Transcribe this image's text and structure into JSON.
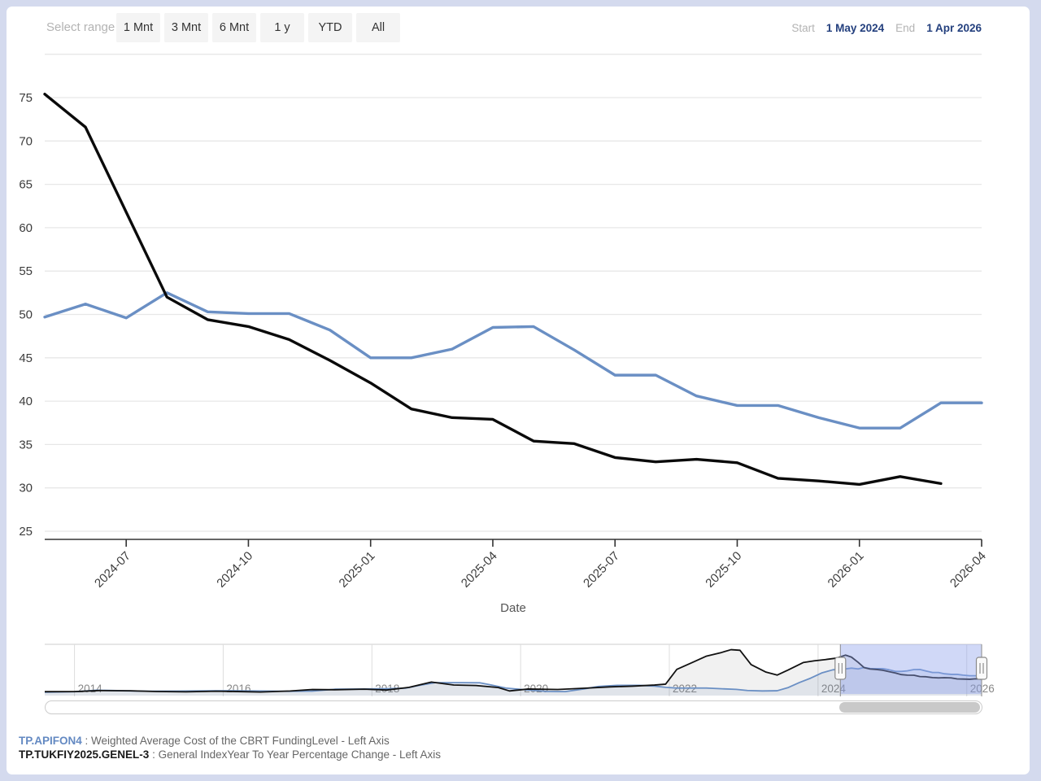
{
  "toolbar": {
    "select_range_label": "Select range",
    "buttons": [
      "1 Mnt",
      "3 Mnt",
      "6 Mnt",
      "1 y",
      "YTD",
      "All"
    ],
    "start_label": "Start",
    "start_value": "1 May 2024",
    "end_label": "End",
    "end_value": "1 Apr 2026"
  },
  "colors": {
    "page_background": "#d4daee",
    "card_background": "#ffffff",
    "series_blue": "#6a8fc4",
    "series_black": "#0a0a0a",
    "gridline": "#e7e7e7",
    "axis": "#333333",
    "tick_text": "#3c3c3c",
    "muted_text": "#b3b3b3",
    "date_value_text": "#24407e",
    "nav_selection": "#8fa2ec",
    "nav_year_text": "#888888"
  },
  "chart_data": [
    {
      "type": "line",
      "title": "",
      "xlabel": "Date",
      "ylabel": "",
      "ylim": [
        24,
        80.5
      ],
      "y_ticks": [
        25,
        30,
        35,
        40,
        45,
        50,
        55,
        60,
        65,
        70,
        75
      ],
      "y_gridlines": [
        25,
        30,
        35,
        40,
        45,
        50,
        55,
        60,
        65,
        70,
        75,
        80
      ],
      "x": [
        "2024-05",
        "2024-06",
        "2024-07",
        "2024-08",
        "2024-09",
        "2024-10",
        "2024-11",
        "2024-12",
        "2025-01",
        "2025-02",
        "2025-03",
        "2025-04",
        "2025-05",
        "2025-06",
        "2025-07",
        "2025-08",
        "2025-09",
        "2025-10",
        "2025-11",
        "2025-12",
        "2026-01",
        "2026-02",
        "2026-03",
        "2026-04"
      ],
      "x_ticks": [
        {
          "i": 2,
          "label": "2024-07"
        },
        {
          "i": 5,
          "label": "2024-10"
        },
        {
          "i": 8,
          "label": "2025-01"
        },
        {
          "i": 11,
          "label": "2025-04"
        },
        {
          "i": 14,
          "label": "2025-07"
        },
        {
          "i": 17,
          "label": "2025-10"
        },
        {
          "i": 20,
          "label": "2026-01"
        },
        {
          "i": 23,
          "label": "2026-04"
        }
      ],
      "series": [
        {
          "name": "TP.APIFON4",
          "color": "#6a8fc4",
          "values": [
            49.7,
            51.2,
            49.6,
            52.5,
            50.3,
            50.1,
            50.1,
            48.2,
            45.0,
            45.0,
            46.0,
            48.5,
            48.6,
            45.9,
            43.0,
            43.0,
            40.6,
            39.5,
            39.5,
            38.1,
            36.9,
            36.9,
            39.8,
            39.8
          ]
        },
        {
          "name": "TP.TUKFIY2025.GENEL-3",
          "color": "#0a0a0a",
          "values": [
            75.4,
            71.6,
            61.8,
            52.0,
            49.4,
            48.6,
            47.1,
            44.7,
            42.1,
            39.1,
            38.1,
            37.9,
            35.4,
            35.1,
            33.5,
            33.0,
            33.3,
            32.9,
            31.1,
            30.8,
            30.4,
            31.3,
            30.5
          ]
        }
      ]
    },
    {
      "type": "area",
      "role": "navigator",
      "x_range": [
        2013.6,
        2026.2
      ],
      "year_ticks": [
        2014,
        2016,
        2018,
        2020,
        2022,
        2024,
        2026
      ],
      "selection": {
        "start_year": 2024.3,
        "end_year": 2026.2,
        "start_label": "1 May 2024",
        "end_label": "1 Apr 2026"
      },
      "series": [
        {
          "name": "TP.APIFON4",
          "color": "#6a8fc4",
          "fill": "rgba(106,143,196,0.12)",
          "points": [
            [
              2013.6,
              6.3
            ],
            [
              2014.0,
              7.2
            ],
            [
              2014.3,
              10.0
            ],
            [
              2014.7,
              8.8
            ],
            [
              2015.0,
              8.1
            ],
            [
              2015.4,
              8.3
            ],
            [
              2015.8,
              8.8
            ],
            [
              2016.1,
              9.0
            ],
            [
              2016.5,
              8.5
            ],
            [
              2016.9,
              8.0
            ],
            [
              2017.2,
              8.3
            ],
            [
              2017.5,
              11.8
            ],
            [
              2017.9,
              12.2
            ],
            [
              2018.2,
              12.8
            ],
            [
              2018.45,
              13.8
            ],
            [
              2018.65,
              19.3
            ],
            [
              2018.85,
              24.0
            ],
            [
              2019.2,
              24.0
            ],
            [
              2019.45,
              23.9
            ],
            [
              2019.6,
              19.9
            ],
            [
              2019.8,
              14.0
            ],
            [
              2020.1,
              10.4
            ],
            [
              2020.35,
              7.8
            ],
            [
              2020.6,
              7.4
            ],
            [
              2020.85,
              12.4
            ],
            [
              2021.05,
              17.0
            ],
            [
              2021.3,
              19.0
            ],
            [
              2021.6,
              19.0
            ],
            [
              2021.8,
              17.7
            ],
            [
              2021.95,
              15.4
            ],
            [
              2022.1,
              14.0
            ],
            [
              2022.5,
              14.0
            ],
            [
              2022.9,
              11.5
            ],
            [
              2023.05,
              9.5
            ],
            [
              2023.25,
              8.6
            ],
            [
              2023.45,
              9.0
            ],
            [
              2023.6,
              15.0
            ],
            [
              2023.75,
              24.3
            ],
            [
              2023.9,
              32.4
            ],
            [
              2024.05,
              42.2
            ],
            [
              2024.2,
              48.0
            ],
            [
              2024.37,
              49.7
            ],
            [
              2024.45,
              51.2
            ],
            [
              2024.54,
              49.6
            ],
            [
              2024.62,
              52.5
            ],
            [
              2024.7,
              50.3
            ],
            [
              2024.79,
              50.1
            ],
            [
              2024.87,
              50.1
            ],
            [
              2024.95,
              48.2
            ],
            [
              2025.04,
              45.0
            ],
            [
              2025.12,
              45.0
            ],
            [
              2025.2,
              46.0
            ],
            [
              2025.29,
              48.5
            ],
            [
              2025.37,
              48.6
            ],
            [
              2025.45,
              45.9
            ],
            [
              2025.54,
              43.0
            ],
            [
              2025.62,
              43.0
            ],
            [
              2025.7,
              40.6
            ],
            [
              2025.79,
              39.5
            ],
            [
              2025.87,
              39.5
            ],
            [
              2025.95,
              38.1
            ],
            [
              2026.04,
              36.9
            ],
            [
              2026.12,
              36.9
            ],
            [
              2026.2,
              39.8
            ]
          ]
        },
        {
          "name": "TP.TUKFIY2025.GENEL-3",
          "color": "#111111",
          "fill": "rgba(120,120,120,0.10)",
          "points": [
            [
              2013.6,
              7.3
            ],
            [
              2014.0,
              7.4
            ],
            [
              2014.33,
              9.4
            ],
            [
              2014.75,
              8.9
            ],
            [
              2015.1,
              7.6
            ],
            [
              2015.5,
              7.0
            ],
            [
              2015.9,
              8.1
            ],
            [
              2016.2,
              7.5
            ],
            [
              2016.5,
              6.6
            ],
            [
              2016.9,
              8.5
            ],
            [
              2017.2,
              11.3
            ],
            [
              2017.5,
              10.9
            ],
            [
              2017.9,
              11.9
            ],
            [
              2018.2,
              10.3
            ],
            [
              2018.5,
              15.4
            ],
            [
              2018.8,
              25.2
            ],
            [
              2019.1,
              19.7
            ],
            [
              2019.4,
              18.7
            ],
            [
              2019.7,
              15.0
            ],
            [
              2019.85,
              8.6
            ],
            [
              2020.1,
              12.2
            ],
            [
              2020.5,
              11.4
            ],
            [
              2020.9,
              14.0
            ],
            [
              2021.2,
              16.2
            ],
            [
              2021.5,
              17.5
            ],
            [
              2021.8,
              19.6
            ],
            [
              2021.95,
              21.3
            ],
            [
              2022.1,
              48.7
            ],
            [
              2022.3,
              61.1
            ],
            [
              2022.5,
              73.5
            ],
            [
              2022.7,
              80.2
            ],
            [
              2022.83,
              85.5
            ],
            [
              2022.95,
              84.4
            ],
            [
              2023.1,
              57.7
            ],
            [
              2023.3,
              43.7
            ],
            [
              2023.45,
              38.2
            ],
            [
              2023.6,
              47.8
            ],
            [
              2023.8,
              61.5
            ],
            [
              2023.95,
              64.8
            ],
            [
              2024.1,
              67.1
            ],
            [
              2024.25,
              69.8
            ],
            [
              2024.37,
              75.4
            ],
            [
              2024.45,
              71.6
            ],
            [
              2024.54,
              61.8
            ],
            [
              2024.62,
              52.0
            ],
            [
              2024.7,
              49.4
            ],
            [
              2024.79,
              48.6
            ],
            [
              2024.87,
              47.1
            ],
            [
              2024.95,
              44.7
            ],
            [
              2025.04,
              42.1
            ],
            [
              2025.12,
              39.1
            ],
            [
              2025.2,
              38.1
            ],
            [
              2025.29,
              37.9
            ],
            [
              2025.37,
              35.4
            ],
            [
              2025.45,
              35.1
            ],
            [
              2025.54,
              33.5
            ],
            [
              2025.62,
              33.0
            ],
            [
              2025.7,
              33.3
            ],
            [
              2025.79,
              32.9
            ],
            [
              2025.87,
              31.1
            ],
            [
              2025.95,
              30.8
            ],
            [
              2026.04,
              30.4
            ],
            [
              2026.12,
              31.3
            ],
            [
              2026.2,
              30.5
            ]
          ]
        }
      ]
    }
  ],
  "legend": {
    "items": [
      {
        "code": "TP.APIFON4",
        "code_color": "#6389c2",
        "description": " : Weighted Average Cost of the CBRT FundingLevel - Left Axis"
      },
      {
        "code": "TP.TUKFIY2025.GENEL-3",
        "code_color": "#1a1a1a",
        "description": " : General IndexYear To Year Percentage Change - Left Axis"
      }
    ]
  }
}
